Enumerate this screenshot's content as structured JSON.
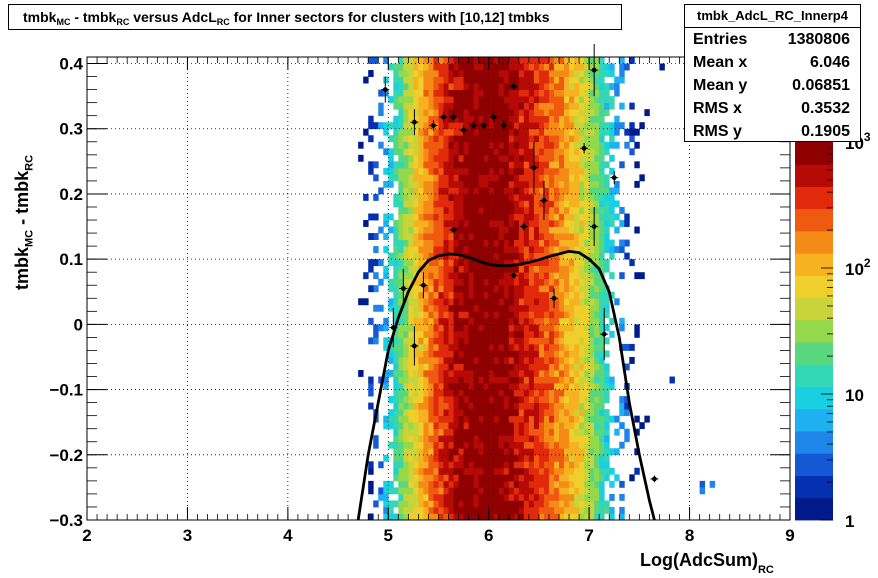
{
  "stats": {
    "name": "tmbk_AdcL_RC_Innerp4",
    "rows": [
      {
        "key": "Entries",
        "value": "1380806"
      },
      {
        "key": "Mean x",
        "value": "6.046"
      },
      {
        "key": "Mean y",
        "value": "0.06851"
      },
      {
        "key": "RMS x",
        "value": "0.3532"
      },
      {
        "key": "RMS y",
        "value": "0.1905"
      }
    ]
  },
  "chart_data": {
    "type": "heatmap",
    "title": {
      "t1": "tmbk",
      "s1": "MC",
      "t2": " - tmbk",
      "s2": "RC",
      "t3": " versus AdcL",
      "s3": "RC",
      "t4": " for Inner sectors for clusters with [10,12] tmbks"
    },
    "xlabel": {
      "main": "Log(AdcSum)",
      "sub": "RC"
    },
    "ylabel": {
      "t1": "tmbk",
      "s1": "MC",
      "t2": " - tmbk",
      "s2": "RC"
    },
    "xlim": [
      2,
      9
    ],
    "ylim": [
      -0.3,
      0.41
    ],
    "xticks": [
      2,
      3,
      4,
      5,
      6,
      7,
      8,
      9
    ],
    "xtick_labels": [
      "2",
      "3",
      "4",
      "5",
      "6",
      "7",
      "8",
      "9"
    ],
    "yticks": [
      -0.3,
      -0.2,
      -0.1,
      0,
      0.1,
      0.2,
      0.3,
      0.4
    ],
    "ytick_labels": [
      "−0.3",
      "−0.2",
      "−0.1",
      "0",
      "0.1",
      "0.2",
      "0.3",
      "0.4"
    ],
    "grid": true,
    "color_scale": "log",
    "zlim": [
      1,
      1000
    ],
    "colorbar_labels": [
      {
        "value": 1,
        "main": "1",
        "exp": ""
      },
      {
        "value": 10,
        "main": "10",
        "exp": ""
      },
      {
        "value": 100,
        "main": "10",
        "exp": "2"
      },
      {
        "value": 1000,
        "main": "10",
        "exp": "3"
      }
    ],
    "density_profile": [
      {
        "x": 4.7,
        "z": 0
      },
      {
        "x": 4.75,
        "z": 1
      },
      {
        "x": 4.9,
        "z": 3
      },
      {
        "x": 5.0,
        "z": 8
      },
      {
        "x": 5.1,
        "z": 18
      },
      {
        "x": 5.2,
        "z": 40
      },
      {
        "x": 5.3,
        "z": 80
      },
      {
        "x": 5.4,
        "z": 170
      },
      {
        "x": 5.5,
        "z": 300
      },
      {
        "x": 5.6,
        "z": 450
      },
      {
        "x": 5.7,
        "z": 600
      },
      {
        "x": 5.8,
        "z": 800
      },
      {
        "x": 5.9,
        "z": 950
      },
      {
        "x": 6.0,
        "z": 1000
      },
      {
        "x": 6.1,
        "z": 900
      },
      {
        "x": 6.2,
        "z": 720
      },
      {
        "x": 6.3,
        "z": 540
      },
      {
        "x": 6.4,
        "z": 420
      },
      {
        "x": 6.5,
        "z": 320
      },
      {
        "x": 6.6,
        "z": 240
      },
      {
        "x": 6.7,
        "z": 170
      },
      {
        "x": 6.8,
        "z": 110
      },
      {
        "x": 6.9,
        "z": 70
      },
      {
        "x": 7.0,
        "z": 40
      },
      {
        "x": 7.1,
        "z": 20
      },
      {
        "x": 7.2,
        "z": 10
      },
      {
        "x": 7.3,
        "z": 5
      },
      {
        "x": 7.4,
        "z": 2
      },
      {
        "x": 7.5,
        "z": 1
      },
      {
        "x": 7.6,
        "z": 0.5
      },
      {
        "x": 7.7,
        "z": 0
      }
    ],
    "isolated_bins": [
      {
        "x": 8.1,
        "y": -0.25,
        "z": 3
      },
      {
        "x": 8.2,
        "y": -0.25,
        "z": 4
      },
      {
        "x": 8.1,
        "y": -0.26,
        "z": 5
      },
      {
        "x": 7.8,
        "y": -0.09,
        "z": 2
      },
      {
        "x": 7.7,
        "y": 0.39,
        "z": 1
      },
      {
        "x": 4.8,
        "y": 0.05,
        "z": 2
      },
      {
        "x": 4.8,
        "y": 0.0,
        "z": 3
      },
      {
        "x": 4.8,
        "y": 0.13,
        "z": 2
      },
      {
        "x": 4.9,
        "y": 0.2,
        "z": 3
      },
      {
        "x": 7.3,
        "y": 0.12,
        "z": 4
      }
    ],
    "profile_curve": {
      "x": [
        4.7,
        4.8,
        4.9,
        5.0,
        5.1,
        5.2,
        5.3,
        5.4,
        5.5,
        5.6,
        5.7,
        5.8,
        5.9,
        6.0,
        6.1,
        6.2,
        6.3,
        6.4,
        6.5,
        6.6,
        6.7,
        6.8,
        6.9,
        7.0,
        7.1,
        7.2,
        7.3,
        7.4,
        7.5,
        7.6,
        7.65
      ],
      "y": [
        -0.3,
        -0.2,
        -0.12,
        -0.04,
        0.01,
        0.05,
        0.08,
        0.098,
        0.105,
        0.108,
        0.107,
        0.103,
        0.097,
        0.092,
        0.09,
        0.09,
        0.092,
        0.095,
        0.099,
        0.104,
        0.108,
        0.112,
        0.11,
        0.1,
        0.085,
        0.05,
        -0.02,
        -0.12,
        -0.2,
        -0.27,
        -0.3
      ]
    },
    "profile_points": [
      {
        "x": 4.97,
        "y": 0.36,
        "ey": 0.02
      },
      {
        "x": 5.05,
        "y": -0.005,
        "ey": 0.03
      },
      {
        "x": 5.15,
        "y": 0.055,
        "ey": 0.03
      },
      {
        "x": 5.26,
        "y": 0.31,
        "ey": 0.02
      },
      {
        "x": 5.26,
        "y": -0.033,
        "ey": 0.03
      },
      {
        "x": 5.35,
        "y": 0.06,
        "ey": 0.02
      },
      {
        "x": 5.45,
        "y": 0.305,
        "ey": 0.008
      },
      {
        "x": 5.55,
        "y": 0.318,
        "ey": 0.008
      },
      {
        "x": 5.65,
        "y": 0.318,
        "ey": 0.008
      },
      {
        "x": 5.65,
        "y": 0.145,
        "ey": 0.005
      },
      {
        "x": 5.75,
        "y": 0.298,
        "ey": 0.008
      },
      {
        "x": 5.85,
        "y": 0.305,
        "ey": 0.008
      },
      {
        "x": 5.95,
        "y": 0.305,
        "ey": 0.008
      },
      {
        "x": 6.05,
        "y": 0.318,
        "ey": 0.008
      },
      {
        "x": 6.15,
        "y": 0.305,
        "ey": 0.008
      },
      {
        "x": 6.25,
        "y": 0.365,
        "ey": 0.006
      },
      {
        "x": 6.25,
        "y": 0.075,
        "ey": 0.005
      },
      {
        "x": 6.35,
        "y": 0.15,
        "ey": 0.006
      },
      {
        "x": 6.45,
        "y": 0.24,
        "ey": 0.04
      },
      {
        "x": 6.55,
        "y": 0.19,
        "ey": 0.03
      },
      {
        "x": 6.65,
        "y": 0.04,
        "ey": 0.015
      },
      {
        "x": 6.95,
        "y": 0.27,
        "ey": 0.008
      },
      {
        "x": 7.05,
        "y": 0.39,
        "ey": 0.04
      },
      {
        "x": 7.05,
        "y": 0.15,
        "ey": 0.03
      },
      {
        "x": 7.15,
        "y": -0.015,
        "ey": 0.04
      },
      {
        "x": 7.25,
        "y": 0.225,
        "ey": 0.01
      },
      {
        "x": 7.65,
        "y": -0.237,
        "ey": 0.005
      }
    ]
  }
}
